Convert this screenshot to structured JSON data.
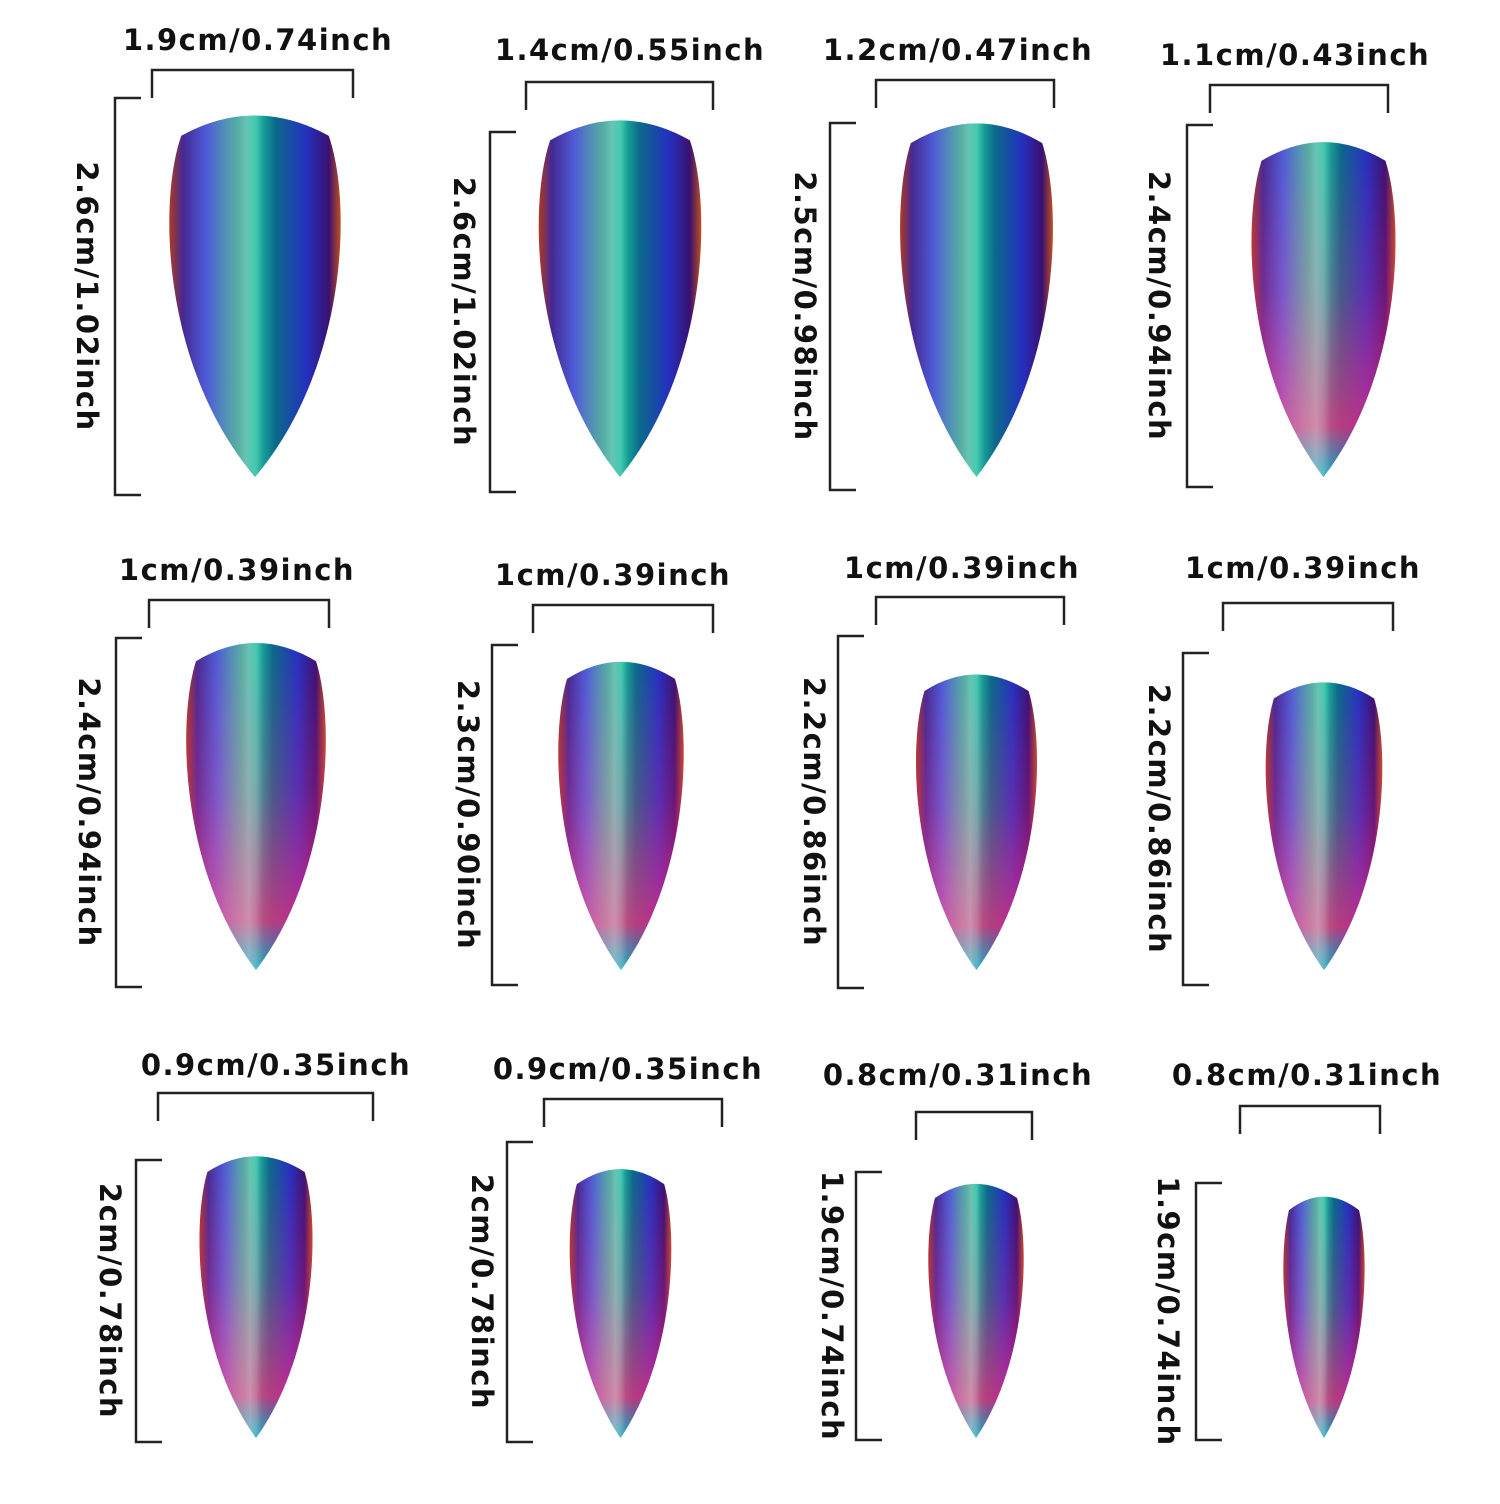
{
  "items": [
    {
      "width": "1.9cm/0.74inch",
      "height": "2.6cm/1.02inch"
    },
    {
      "width": "1.4cm/0.55inch",
      "height": "2.6cm/1.02inch"
    },
    {
      "width": "1.2cm/0.47inch",
      "height": "2.5cm/0.98inch"
    },
    {
      "width": "1.1cm/0.43inch",
      "height": "2.4cm/0.94inch"
    },
    {
      "width": "1cm/0.39inch",
      "height": "2.4cm/0.94inch"
    },
    {
      "width": "1cm/0.39inch",
      "height": "2.3cm/0.90inch"
    },
    {
      "width": "1cm/0.39inch",
      "height": "2.2cm/0.86inch"
    },
    {
      "width": "1cm/0.39inch",
      "height": "2.2cm/0.86inch"
    },
    {
      "width": "0.9cm/0.35inch",
      "height": "2cm/0.78inch"
    },
    {
      "width": "0.9cm/0.35inch",
      "height": "2cm/0.78inch"
    },
    {
      "width": "0.8cm/0.31inch",
      "height": "1.9cm/0.74inch"
    },
    {
      "width": "0.8cm/0.31inch",
      "height": "1.9cm/0.74inch"
    }
  ]
}
